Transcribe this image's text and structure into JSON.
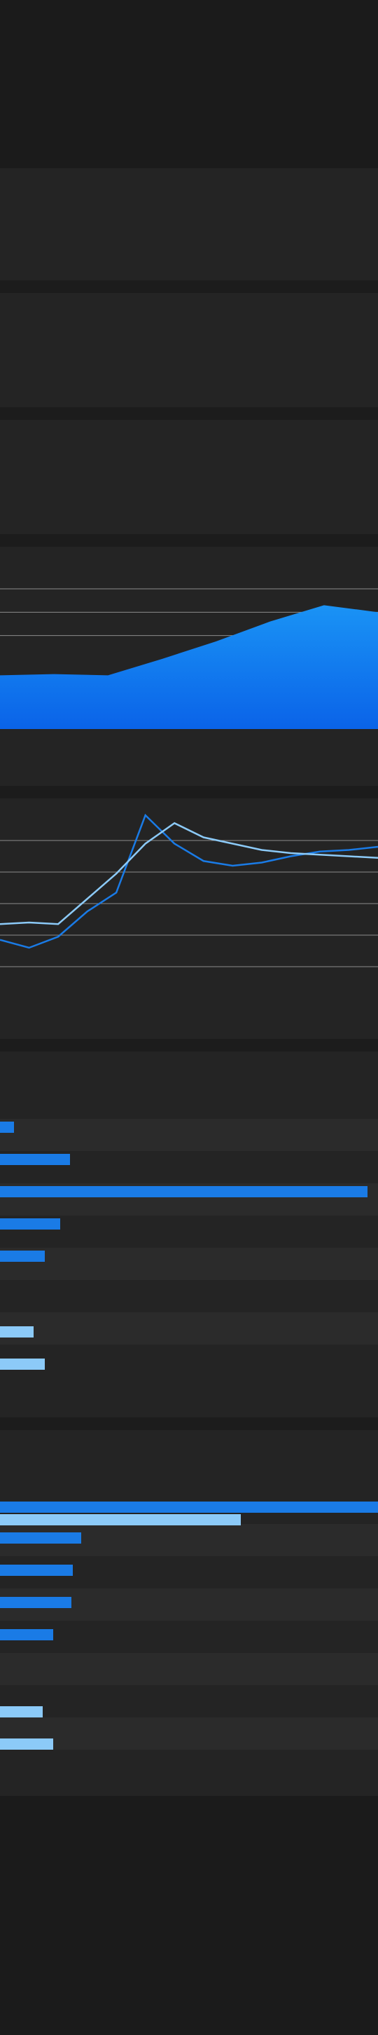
{
  "colors": {
    "page_bg": "#1b1b1b",
    "panel_bg": "#242424",
    "stripe_bg": "#2b2b2b",
    "grid": "#8c8c8c",
    "blue": "#1a7be6",
    "blue_area_top": "#1a93f5",
    "blue_area_bottom": "#0a63e8",
    "light_blue": "#8ccaf8"
  },
  "chart_data": [
    {
      "type": "area",
      "title": "",
      "x": [
        1,
        2,
        3,
        4,
        5,
        6,
        7,
        8
      ],
      "series": [
        {
          "values": [
            2.3,
            2.35,
            2.3,
            3.0,
            3.75,
            4.6,
            5.3,
            5.0
          ]
        }
      ],
      "ylim": [
        0,
        6
      ],
      "grid": true
    },
    {
      "type": "line",
      "title": "",
      "x": [
        1,
        2,
        3,
        4,
        5,
        6,
        7,
        8,
        9,
        10,
        11,
        12,
        13,
        14
      ],
      "series": [
        {
          "values": [
            0.85,
            0.6,
            0.95,
            1.75,
            2.35,
            4.8,
            3.9,
            3.35,
            3.2,
            3.3,
            3.5,
            3.65,
            3.7,
            3.8
          ]
        },
        {
          "values": [
            1.35,
            1.4,
            1.35,
            2.15,
            2.95,
            3.9,
            4.55,
            4.1,
            3.9,
            3.7,
            3.6,
            3.55,
            3.5,
            3.45
          ]
        }
      ],
      "ylim": [
        -1,
        5
      ],
      "grid": true
    },
    {
      "type": "bar",
      "orientation": "horizontal",
      "title": "",
      "series": [
        {
          "values": [
            20,
            100,
            525,
            86,
            64
          ]
        },
        {
          "values": [
            48,
            64
          ]
        }
      ],
      "xlim": [
        0,
        540
      ]
    },
    {
      "type": "bar",
      "orientation": "horizontal",
      "title": "",
      "series": [
        {
          "values": [
            540,
            116,
            104,
            102,
            76
          ]
        },
        {
          "values": [
            344,
            61,
            76
          ]
        }
      ],
      "xlim": [
        0,
        540
      ]
    }
  ]
}
